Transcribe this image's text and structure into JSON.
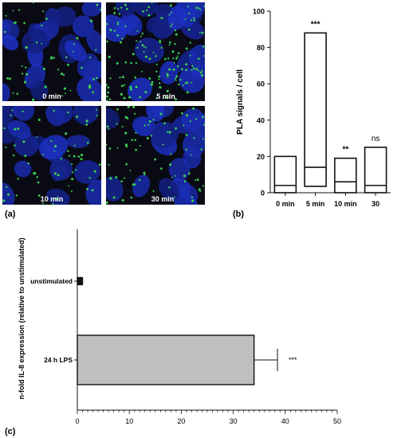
{
  "panel_labels": {
    "a": "(a)",
    "b": "(b)",
    "c": "(c)"
  },
  "micrographs": [
    {
      "label": "0 min",
      "density": 0.1
    },
    {
      "label": "5 min",
      "density": 0.55
    },
    {
      "label": "10 min",
      "density": 0.15
    },
    {
      "label": "30 min",
      "density": 0.25
    }
  ],
  "colors": {
    "nuclei": "#1a2fa8",
    "background": "#0a0a14",
    "pla_signal": "#39d353",
    "bar_c": "#bfbfbf",
    "axis": "#111111"
  },
  "chart_data": [
    {
      "type": "box",
      "ylabel": "PLA signals / cell",
      "ylim": [
        0,
        100
      ],
      "yticks": [
        0,
        20,
        40,
        60,
        80,
        100
      ],
      "categories": [
        "0 min",
        "5 min",
        "10 min",
        "30"
      ],
      "boxes": [
        {
          "min": 0,
          "median": 4,
          "max": 20,
          "sig": ""
        },
        {
          "min": 3.5,
          "median": 14,
          "max": 88,
          "sig": "***"
        },
        {
          "min": 0,
          "median": 6,
          "max": 19,
          "sig": "**"
        },
        {
          "min": 0,
          "median": 4,
          "max": 25,
          "sig": "ns"
        }
      ]
    },
    {
      "type": "bar",
      "orientation": "horizontal",
      "ylabel": "n-fold IL-8 expression (relative to unstimulated)",
      "categories": [
        "unstimulated",
        "24 h LPS"
      ],
      "values": [
        1,
        34
      ],
      "errors": [
        0,
        4.5
      ],
      "sig": [
        "",
        "***"
      ],
      "xlim": [
        0,
        50
      ],
      "xticks": [
        0,
        10,
        20,
        30,
        40,
        50
      ]
    }
  ]
}
